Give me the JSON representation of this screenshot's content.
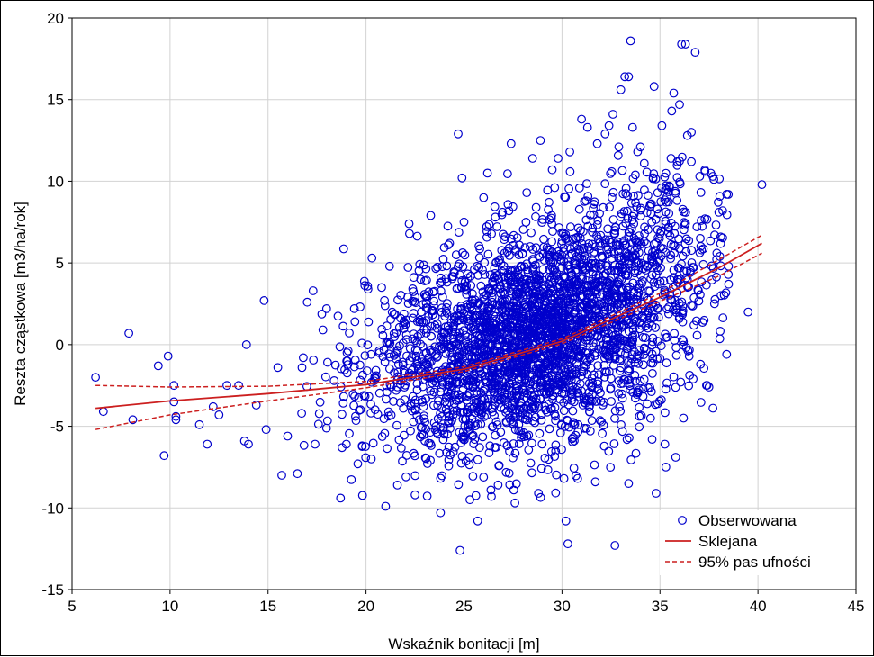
{
  "chart_data": {
    "type": "scatter",
    "title": "",
    "xlabel": "Wskaźnik bonitacji [m]",
    "ylabel": "Reszta cząstkowa [m3/ha/rok]",
    "xlim": [
      5,
      45
    ],
    "ylim": [
      -15,
      20
    ],
    "x_ticks": [
      "5",
      "10",
      "15",
      "20",
      "25",
      "30",
      "35",
      "40",
      "45"
    ],
    "y_ticks": [
      "-15",
      "-10",
      "-5",
      "0",
      "5",
      "10",
      "15",
      "20"
    ],
    "grid": true,
    "legend_position": "bottom-right",
    "colors": {
      "points": "#0000cc",
      "spline": "#cc1f1f",
      "band": "#cc1f1f"
    },
    "series": [
      {
        "name": "Obserwowana",
        "kind": "scatter",
        "points": [
          [
            6.2,
            -2.0
          ],
          [
            6.6,
            -4.1
          ],
          [
            7.9,
            0.7
          ],
          [
            8.1,
            -4.6
          ],
          [
            9.4,
            -1.3
          ],
          [
            9.7,
            -6.8
          ],
          [
            9.9,
            -0.7
          ],
          [
            10.2,
            -2.5
          ],
          [
            10.2,
            -3.5
          ],
          [
            10.3,
            -4.4
          ],
          [
            10.3,
            -4.6
          ],
          [
            11.5,
            -4.9
          ],
          [
            11.9,
            -6.1
          ],
          [
            12.2,
            -3.8
          ],
          [
            12.5,
            -4.3
          ],
          [
            12.9,
            -2.5
          ],
          [
            13.5,
            -2.5
          ],
          [
            13.8,
            -5.9
          ],
          [
            13.9,
            0.0
          ],
          [
            14.0,
            -6.1
          ],
          [
            14.4,
            -3.7
          ],
          [
            14.8,
            2.7
          ],
          [
            14.9,
            -5.2
          ],
          [
            15.5,
            -1.4
          ],
          [
            15.7,
            -8.0
          ],
          [
            16.0,
            -5.6
          ],
          [
            16.5,
            -7.9
          ],
          [
            16.8,
            -0.8
          ],
          [
            17.0,
            2.6
          ],
          [
            17.3,
            3.3
          ],
          [
            17.4,
            -6.1
          ],
          [
            17.8,
            0.9
          ],
          [
            18.7,
            -9.4
          ],
          [
            19.0,
            -6.1
          ],
          [
            19.4,
            2.2
          ],
          [
            19.8,
            -6.2
          ],
          [
            20.1,
            3.4
          ],
          [
            20.3,
            5.3
          ],
          [
            20.8,
            3.5
          ],
          [
            21.0,
            -9.9
          ],
          [
            21.2,
            4.8
          ],
          [
            21.6,
            -8.6
          ],
          [
            22.2,
            7.4
          ],
          [
            22.5,
            -9.2
          ],
          [
            23.0,
            3.9
          ],
          [
            23.3,
            7.9
          ],
          [
            23.8,
            -10.3
          ],
          [
            24.2,
            6.1
          ],
          [
            24.6,
            5.5
          ],
          [
            24.7,
            12.9
          ],
          [
            24.9,
            10.2
          ],
          [
            24.8,
            -12.6
          ],
          [
            25.0,
            7.5
          ],
          [
            25.3,
            -9.5
          ],
          [
            25.7,
            -10.8
          ],
          [
            26.0,
            9.0
          ],
          [
            26.2,
            10.5
          ],
          [
            26.4,
            -9.3
          ],
          [
            26.6,
            7.8
          ],
          [
            27.4,
            12.3
          ],
          [
            27.6,
            -9.7
          ],
          [
            28.2,
            9.3
          ],
          [
            28.5,
            11.4
          ],
          [
            28.8,
            -9.1
          ],
          [
            28.9,
            12.5
          ],
          [
            29.5,
            10.7
          ],
          [
            29.8,
            11.4
          ],
          [
            30.1,
            -8.2
          ],
          [
            30.2,
            -10.8
          ],
          [
            30.3,
            -12.2
          ],
          [
            30.4,
            11.8
          ],
          [
            30.8,
            -8.2
          ],
          [
            31.0,
            13.8
          ],
          [
            31.3,
            13.3
          ],
          [
            31.7,
            -8.4
          ],
          [
            31.8,
            12.3
          ],
          [
            32.2,
            12.9
          ],
          [
            32.4,
            13.4
          ],
          [
            32.6,
            14.1
          ],
          [
            32.7,
            -12.3
          ],
          [
            32.9,
            12.1
          ],
          [
            33.0,
            15.6
          ],
          [
            33.2,
            16.4
          ],
          [
            33.4,
            16.4
          ],
          [
            33.4,
            -8.5
          ],
          [
            33.5,
            18.6
          ],
          [
            33.6,
            13.3
          ],
          [
            34.0,
            12.1
          ],
          [
            34.2,
            11.1
          ],
          [
            34.6,
            -5.8
          ],
          [
            34.7,
            15.8
          ],
          [
            34.8,
            -9.1
          ],
          [
            35.1,
            13.4
          ],
          [
            35.3,
            -7.5
          ],
          [
            35.6,
            14.3
          ],
          [
            35.7,
            15.4
          ],
          [
            35.8,
            -6.9
          ],
          [
            36.0,
            14.7
          ],
          [
            36.1,
            18.4
          ],
          [
            36.2,
            -4.5
          ],
          [
            36.3,
            18.4
          ],
          [
            36.4,
            12.8
          ],
          [
            36.6,
            13.0
          ],
          [
            36.6,
            11.2
          ],
          [
            36.8,
            17.9
          ],
          [
            37.1,
            7.6
          ],
          [
            37.3,
            10.6
          ],
          [
            37.5,
            -2.6
          ],
          [
            37.7,
            10.3
          ],
          [
            37.9,
            5.6
          ],
          [
            38.0,
            8.1
          ],
          [
            38.2,
            8.2
          ],
          [
            38.4,
            -0.6
          ],
          [
            38.5,
            3.7
          ],
          [
            38.4,
            9.2
          ],
          [
            38.5,
            4.8
          ],
          [
            39.5,
            2.0
          ],
          [
            40.2,
            9.8
          ]
        ]
      },
      {
        "name": "Sklejana",
        "kind": "line",
        "points": [
          [
            6.2,
            -3.9
          ],
          [
            10,
            -3.45
          ],
          [
            15,
            -3.0
          ],
          [
            20,
            -2.45
          ],
          [
            25,
            -1.5
          ],
          [
            30,
            0.2
          ],
          [
            35,
            2.9
          ],
          [
            38,
            4.7
          ],
          [
            40.2,
            6.2
          ]
        ]
      },
      {
        "name": "95% pas ufności",
        "kind": "band",
        "upper": [
          [
            6.2,
            -2.5
          ],
          [
            10,
            -2.6
          ],
          [
            15,
            -2.55
          ],
          [
            20,
            -2.25
          ],
          [
            25,
            -1.35
          ],
          [
            30,
            0.35
          ],
          [
            35,
            3.15
          ],
          [
            38,
            5.2
          ],
          [
            40.2,
            6.7
          ]
        ],
        "lower": [
          [
            6.2,
            -5.2
          ],
          [
            10,
            -4.3
          ],
          [
            15,
            -3.45
          ],
          [
            20,
            -2.65
          ],
          [
            25,
            -1.65
          ],
          [
            30,
            0.05
          ],
          [
            35,
            2.65
          ],
          [
            38,
            4.2
          ],
          [
            40.2,
            5.6
          ]
        ]
      }
    ]
  }
}
